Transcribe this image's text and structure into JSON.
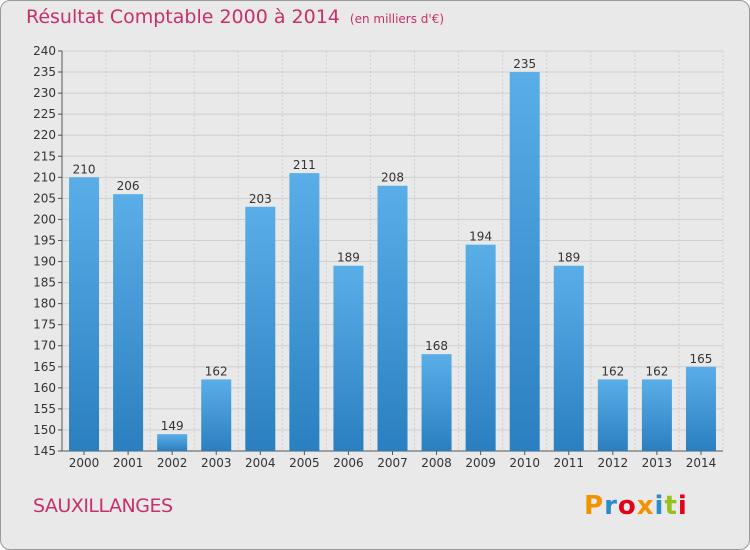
{
  "header": {
    "title": "Résultat Comptable 2000 à 2014",
    "subtitle": "(en milliers d'€)"
  },
  "footer": {
    "place_name": "SAUXILLANGES",
    "logo_text": "Proxiti",
    "logo_colors": [
      "#f39200",
      "#2e8bc9",
      "#e2001a",
      "#f39200",
      "#2e8bc9",
      "#95c11f",
      "#e2001a"
    ]
  },
  "colors": {
    "bar_light": "#5aaee8",
    "bar_dark": "#2a7fc0",
    "title": "#c8306b",
    "background": "#e9e9e9"
  },
  "chart_data": {
    "type": "bar",
    "title": "Résultat Comptable 2000 à 2014",
    "subtitle": "(en milliers d'€)",
    "categories": [
      "2000",
      "2001",
      "2002",
      "2003",
      "2004",
      "2005",
      "2006",
      "2007",
      "2008",
      "2009",
      "2010",
      "2011",
      "2012",
      "2013",
      "2014"
    ],
    "values": [
      210,
      206,
      149,
      162,
      203,
      211,
      189,
      208,
      168,
      194,
      235,
      189,
      162,
      162,
      165
    ],
    "ylim": [
      145,
      240
    ],
    "yticks": [
      145,
      150,
      155,
      160,
      165,
      170,
      175,
      180,
      185,
      190,
      195,
      200,
      205,
      210,
      215,
      220,
      225,
      230,
      235,
      240
    ],
    "grid": true,
    "legend": "none"
  }
}
